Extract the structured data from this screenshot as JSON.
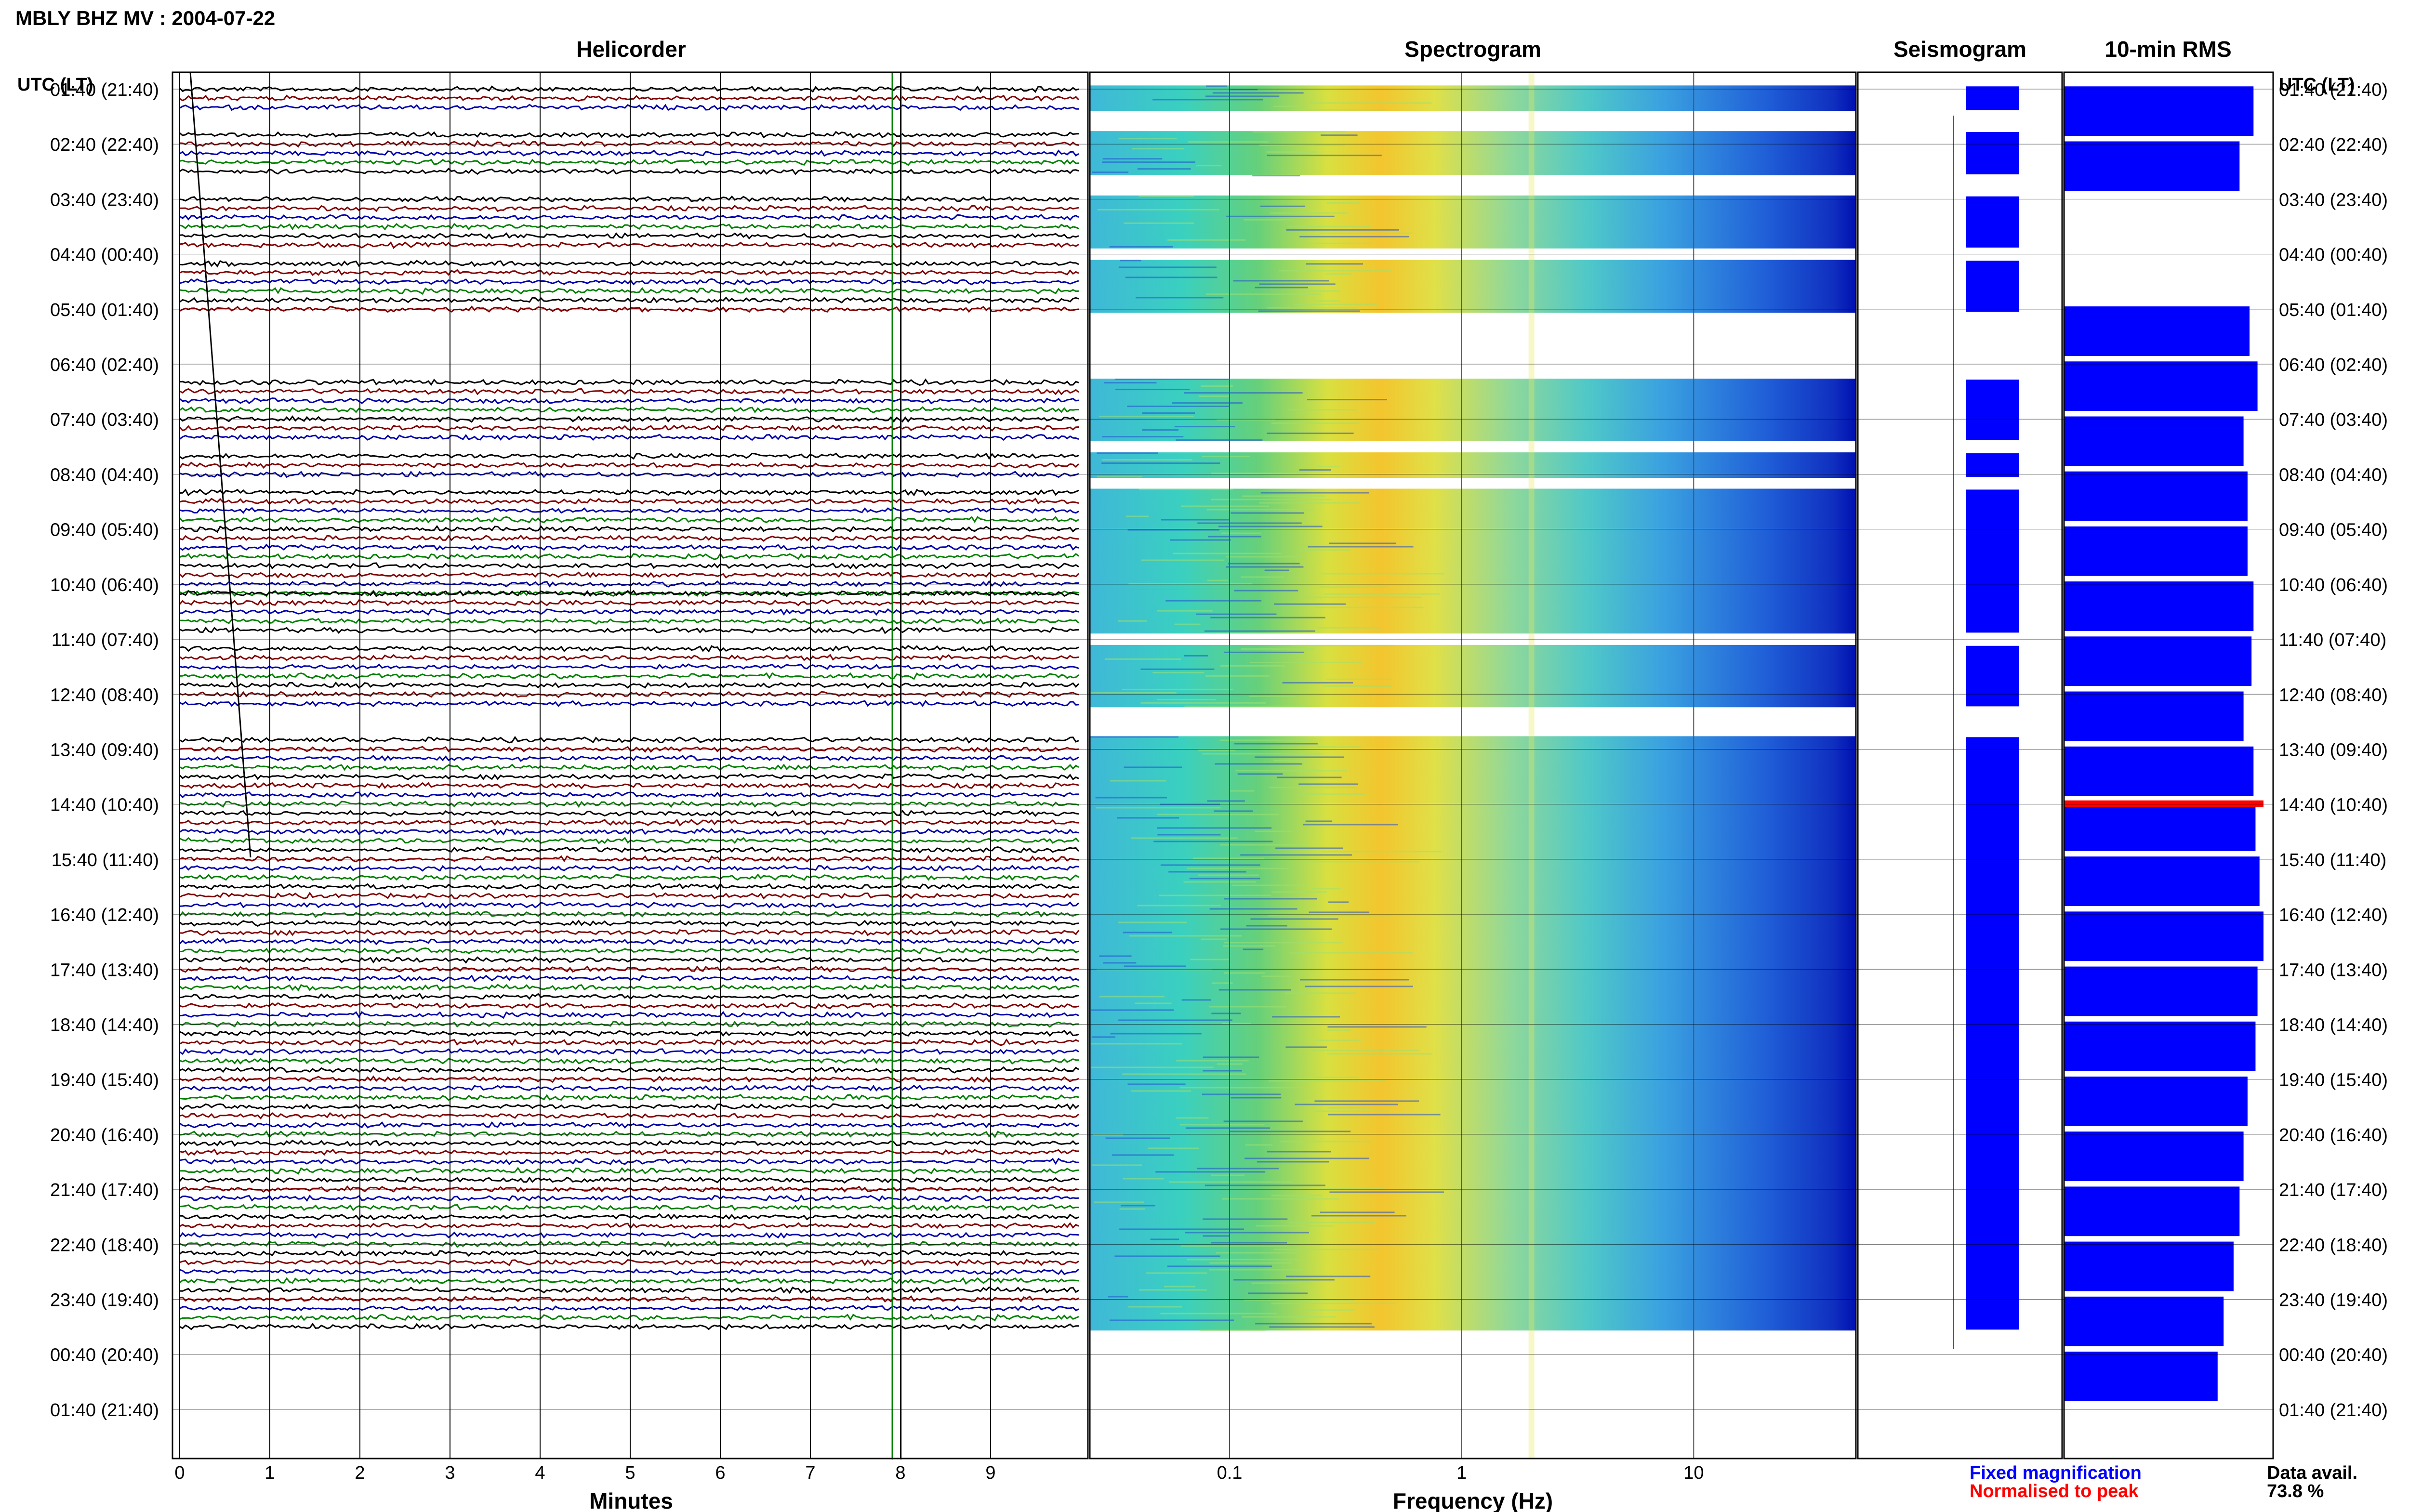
{
  "header": {
    "title": "MBLY BHZ MV : 2004-07-22"
  },
  "panels": {
    "helicorder": {
      "title": "Helicorder",
      "xlabel": "Minutes"
    },
    "spectrogram": {
      "title": "Spectrogram",
      "xlabel": "Frequency (Hz)"
    },
    "seismogram": {
      "title": "Seismogram"
    },
    "rms": {
      "title": "10-min RMS"
    }
  },
  "time_axis": {
    "label_left": "UTC (LT)",
    "label_right": "UTC (LT)",
    "ticks": [
      "01:40 (21:40)",
      "02:40 (22:40)",
      "03:40 (23:40)",
      "04:40 (00:40)",
      "05:40 (01:40)",
      "06:40 (02:40)",
      "07:40 (03:40)",
      "08:40 (04:40)",
      "09:40 (05:40)",
      "10:40 (06:40)",
      "11:40 (07:40)",
      "12:40 (08:40)",
      "13:40 (09:40)",
      "14:40 (10:40)",
      "15:40 (11:40)",
      "16:40 (12:40)",
      "17:40 (13:40)",
      "18:40 (14:40)",
      "19:40 (15:40)",
      "20:40 (16:40)",
      "21:40 (17:40)",
      "22:40 (18:40)",
      "23:40 (19:40)",
      "00:40 (20:40)",
      "01:40 (21:40)"
    ]
  },
  "legend": {
    "fixed": "Fixed magnification",
    "normalised": "Normalised to peak",
    "fixed_color": "#0000ff",
    "normalised_color": "#ff0000"
  },
  "availability": {
    "label": "Data avail.",
    "value": "73.8 %"
  },
  "colors": {
    "trace_cycle": [
      "#000000",
      "#800000",
      "#0000aa",
      "#008000"
    ],
    "rms_bar": "#0000ff",
    "rms_peak": "#ff0000",
    "grid": "#000000"
  },
  "chart_data": [
    {
      "type": "line",
      "name": "Helicorder",
      "x_ticks": [
        0,
        1,
        2,
        3,
        4,
        5,
        6,
        7,
        8,
        9
      ],
      "xlim": [
        0,
        10
      ],
      "row_minutes": 10,
      "rows_per_hour": 6,
      "data_segments_hours": [
        [
          0,
          0.33
        ],
        [
          0.83,
          1.5
        ],
        [
          2.0,
          2.83
        ],
        [
          3.17,
          4.0
        ],
        [
          5.33,
          6.33
        ],
        [
          6.67,
          7.0
        ],
        [
          7.33,
          9.17
        ],
        [
          9.17,
          9.83
        ],
        [
          10.17,
          11.17
        ],
        [
          11.83,
          22.5
        ]
      ],
      "green_gaps_hours": [
        [
          11.17,
          11.67
        ]
      ]
    },
    {
      "type": "heatmap",
      "name": "Spectrogram",
      "xscale": "log",
      "xlim": [
        0.025,
        50
      ],
      "x_ticks": [
        0.1,
        1,
        10
      ],
      "x_tick_labels": [
        "0.1",
        "1",
        "10"
      ],
      "colormap": "jet",
      "energy_peak_hz": 0.4,
      "spectral_line_hz": 2.0
    },
    {
      "type": "line",
      "name": "Seismogram",
      "note_colors": [
        "#0000ff",
        "#ff0000"
      ]
    },
    {
      "type": "bar",
      "name": "10-min RMS",
      "orientation": "horizontal",
      "values_relative": [
        0.95,
        0.88,
        0.0,
        0.0,
        0.93,
        0.97,
        0.9,
        0.92,
        0.92,
        0.95,
        0.94,
        0.9,
        0.95,
        0.96,
        0.98,
        1.0,
        0.97,
        0.96,
        0.92,
        0.9,
        0.88,
        0.85,
        0.8,
        0.77
      ]
    }
  ]
}
